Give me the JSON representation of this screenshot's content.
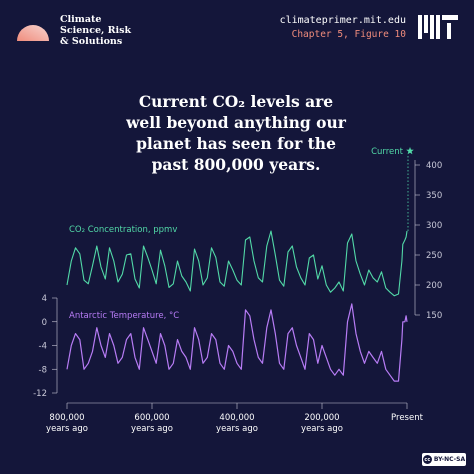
{
  "header": {
    "brand": "Climate\nScience, Risk\n& Solutions",
    "site": "climateprimer.mit.edu",
    "figure": "Chapter 5, Figure 10",
    "logo_icon": "half-sun-logo-icon",
    "mit_icon": "mit-logo-icon"
  },
  "headline": [
    "Current CO₂ levels are",
    "well beyond anything our",
    "planet has seen for the",
    "past 800,000 years."
  ],
  "license": "BY-NC-SA",
  "colors": {
    "background": "#14163a",
    "co2": "#52d9a8",
    "temp": "#b77cf5",
    "axis": "#c9c9d8",
    "accent": "#f08c7c"
  },
  "chart_data": [
    {
      "type": "line",
      "series_label": "CO₂ Concentration, ppmv",
      "current_label": "Current",
      "current_marker": "star-icon",
      "x_unit": "thousand years ago",
      "right_axis_ticks": [
        400,
        350,
        300,
        250,
        200,
        150
      ],
      "ylim": [
        150,
        400
      ],
      "current_value": 415,
      "x": [
        800,
        790,
        780,
        770,
        760,
        750,
        740,
        730,
        720,
        710,
        700,
        690,
        680,
        670,
        660,
        650,
        640,
        630,
        620,
        610,
        600,
        590,
        580,
        570,
        560,
        550,
        540,
        530,
        520,
        510,
        500,
        490,
        480,
        470,
        460,
        450,
        440,
        430,
        420,
        410,
        400,
        390,
        380,
        370,
        360,
        350,
        340,
        330,
        320,
        310,
        300,
        290,
        280,
        270,
        260,
        250,
        240,
        230,
        220,
        210,
        200,
        190,
        180,
        170,
        160,
        150,
        140,
        130,
        120,
        110,
        100,
        90,
        80,
        70,
        60,
        50,
        40,
        30,
        20,
        12,
        10,
        5,
        2,
        0
      ],
      "values": [
        200,
        240,
        262,
        252,
        208,
        202,
        232,
        265,
        230,
        210,
        262,
        240,
        205,
        218,
        250,
        252,
        210,
        195,
        265,
        246,
        225,
        202,
        258,
        232,
        196,
        202,
        240,
        215,
        205,
        190,
        260,
        240,
        200,
        212,
        262,
        246,
        205,
        198,
        240,
        225,
        208,
        200,
        275,
        280,
        240,
        212,
        205,
        265,
        290,
        250,
        208,
        198,
        255,
        265,
        230,
        212,
        200,
        245,
        250,
        210,
        232,
        200,
        188,
        195,
        205,
        190,
        270,
        285,
        240,
        218,
        200,
        225,
        212,
        205,
        222,
        195,
        188,
        182,
        185,
        240,
        268,
        275,
        280,
        290
      ]
    },
    {
      "type": "line",
      "series_label": "Antarctic Temperature, °C",
      "left_axis_ticks": [
        4,
        0,
        -4,
        -8,
        -12
      ],
      "ylim": [
        -12,
        4
      ],
      "x_ticks": [
        {
          "x": 800,
          "line1": "800,000",
          "line2": "years ago"
        },
        {
          "x": 600,
          "line1": "600,000",
          "line2": "years ago"
        },
        {
          "x": 400,
          "line1": "400,000",
          "line2": "years ago"
        },
        {
          "x": 200,
          "line1": "200,000",
          "line2": "years ago"
        },
        {
          "x": 0,
          "line1": "Present",
          "line2": ""
        }
      ],
      "x": [
        800,
        790,
        780,
        770,
        760,
        750,
        740,
        730,
        720,
        710,
        700,
        690,
        680,
        670,
        660,
        650,
        640,
        630,
        620,
        610,
        600,
        590,
        580,
        570,
        560,
        550,
        540,
        530,
        520,
        510,
        500,
        490,
        480,
        470,
        460,
        450,
        440,
        430,
        420,
        410,
        400,
        390,
        380,
        370,
        360,
        350,
        340,
        330,
        320,
        310,
        300,
        290,
        280,
        270,
        260,
        250,
        240,
        230,
        220,
        210,
        200,
        190,
        180,
        170,
        160,
        150,
        140,
        130,
        120,
        110,
        100,
        90,
        80,
        70,
        60,
        50,
        40,
        30,
        20,
        12,
        10,
        5,
        2,
        0
      ],
      "values": [
        -8,
        -4,
        -2,
        -3,
        -8,
        -7,
        -5,
        -1,
        -4,
        -6,
        -2,
        -4,
        -7,
        -6,
        -3,
        -2,
        -6,
        -8,
        -1,
        -3,
        -5,
        -7,
        -2,
        -4,
        -8,
        -7,
        -3,
        -5,
        -6,
        -8,
        -1,
        -3,
        -7,
        -6,
        -2,
        -3,
        -7,
        -8,
        -4,
        -5,
        -7,
        -8,
        2,
        1,
        -3,
        -6,
        -7,
        -1,
        2,
        -2,
        -7,
        -8,
        -2,
        -1,
        -4,
        -6,
        -8,
        -2,
        -3,
        -7,
        -4,
        -6,
        -8,
        -9,
        -8,
        -9,
        0,
        3,
        -2,
        -5,
        -7,
        -5,
        -6,
        -7,
        -5,
        -8,
        -9,
        -10,
        -10,
        -3,
        0,
        0,
        1,
        0
      ]
    }
  ]
}
